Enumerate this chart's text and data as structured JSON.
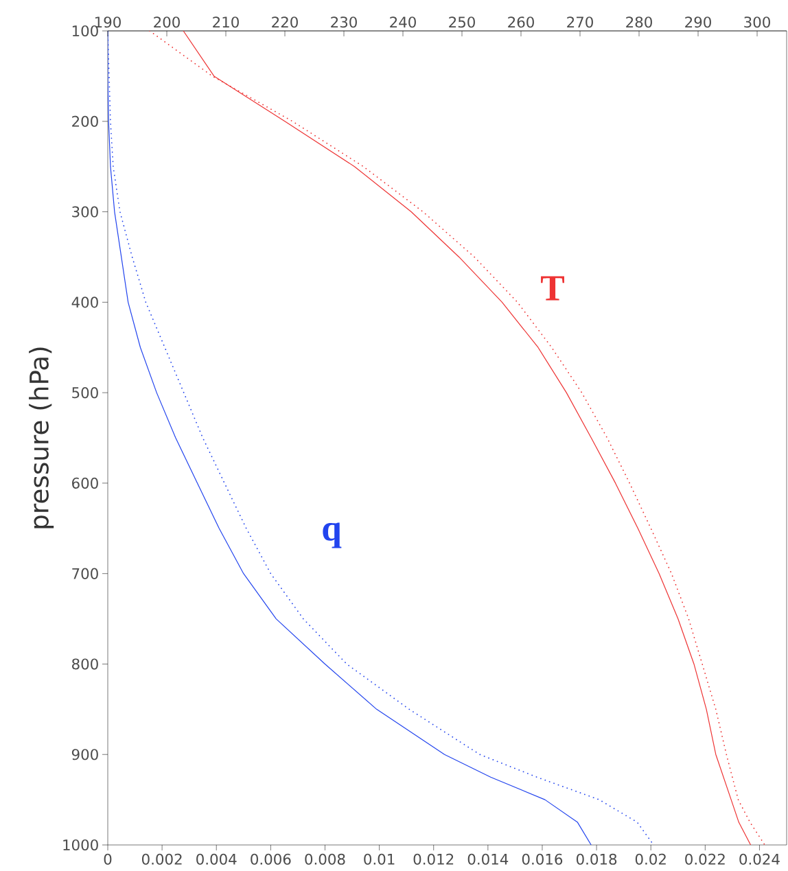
{
  "chart_data": {
    "type": "line",
    "ylabel": "pressure (hPa)",
    "xlim": [
      0,
      0.025
    ],
    "xticks": [
      0,
      0.002,
      0.004,
      0.006,
      0.008,
      0.01,
      0.012,
      0.014,
      0.016,
      0.018,
      0.02,
      0.022,
      0.024
    ],
    "x2lim": [
      190,
      305
    ],
    "x2ticks": [
      190,
      200,
      210,
      220,
      230,
      240,
      250,
      260,
      270,
      280,
      290,
      300
    ],
    "ylim": [
      1000,
      100
    ],
    "yticks": [
      100,
      200,
      300,
      400,
      500,
      600,
      700,
      800,
      900,
      1000
    ],
    "grid": false,
    "annotations": [
      "**T**",
      "**q**"
    ],
    "series": [
      {
        "color": "#ee3333",
        "axis": "x2",
        "line_style": "solid",
        "x": [
          202.8,
          208.0,
          220.0,
          231.8,
          241.4,
          249.5,
          256.8,
          262.9,
          267.7,
          271.9,
          276.0,
          279.8,
          283.4,
          286.6,
          289.3,
          291.4,
          293.0,
          295.6,
          296.9,
          298.9
        ],
        "values": [
          100,
          150,
          200,
          250,
          300,
          350,
          400,
          450,
          500,
          550,
          600,
          650,
          700,
          750,
          800,
          850,
          900,
          950,
          975,
          1000
        ]
      },
      {
        "color": "#ee3333",
        "axis": "x2",
        "line_style": "dotted",
        "x": [
          197.1,
          207.7,
          221.3,
          233.3,
          243.4,
          252.1,
          259.4,
          265.2,
          270.3,
          274.6,
          278.4,
          282.0,
          285.5,
          288.4,
          290.7,
          293.0,
          294.8,
          296.8,
          298.8,
          301.3
        ],
        "values": [
          100,
          150,
          200,
          250,
          300,
          350,
          400,
          450,
          500,
          550,
          600,
          650,
          700,
          750,
          800,
          850,
          900,
          950,
          975,
          1000
        ]
      },
      {
        "color": "#2244ee",
        "line_style": "solid",
        "x": [
          0,
          0,
          3e-05,
          0.0001,
          0.00025,
          0.0005,
          0.00075,
          0.0012,
          0.0018,
          0.0025,
          0.0033,
          0.0041,
          0.005,
          0.0062,
          0.008,
          0.0099,
          0.0124,
          0.0141,
          0.0161,
          0.0173,
          0.0178
        ],
        "values": [
          100,
          150,
          200,
          250,
          300,
          350,
          400,
          450,
          500,
          550,
          600,
          650,
          700,
          750,
          800,
          850,
          900,
          925,
          950,
          975,
          1000
        ]
      },
      {
        "color": "#2244ee",
        "line_style": "dotted",
        "x": [
          0,
          0.0001,
          0.0002,
          0.00045,
          0.0009,
          0.0014,
          0.0021,
          0.0028,
          0.0035,
          0.0043,
          0.0051,
          0.006,
          0.0072,
          0.0088,
          0.0111,
          0.0137,
          0.0158,
          0.0181,
          0.0195,
          0.0201
        ],
        "values": [
          100,
          200,
          250,
          300,
          350,
          400,
          450,
          500,
          550,
          600,
          650,
          700,
          750,
          800,
          850,
          900,
          925,
          950,
          975,
          1000
        ]
      }
    ]
  }
}
